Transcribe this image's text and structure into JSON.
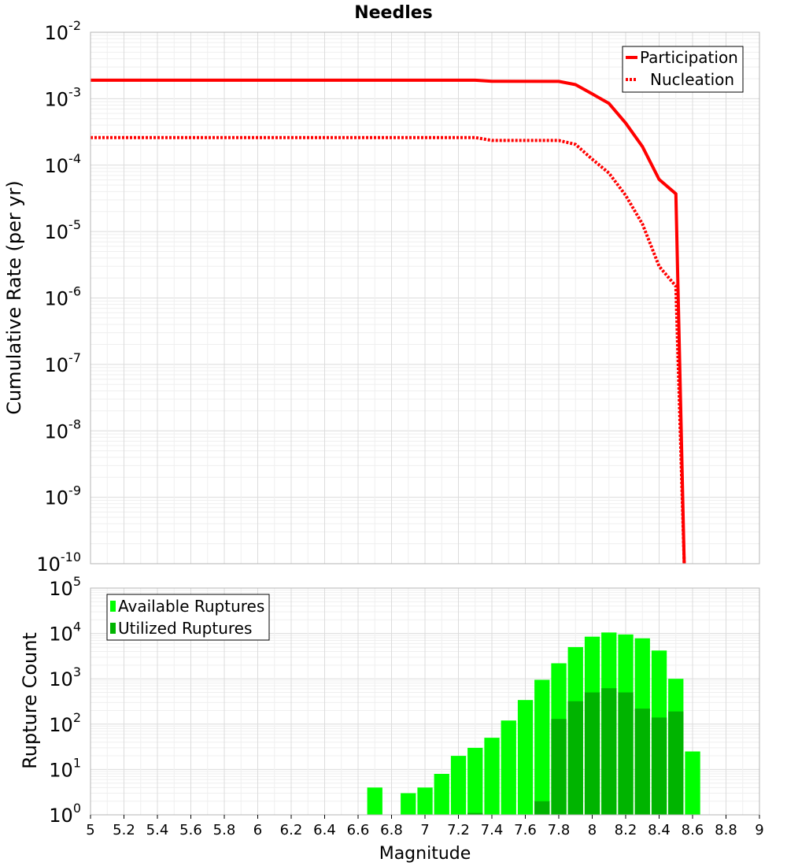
{
  "chart_data": [
    {
      "type": "line",
      "title": "Needles",
      "xlabel": "",
      "ylabel": "Cumulative Rate (per yr)",
      "xlim": [
        5,
        9
      ],
      "ylim": [
        1e-10,
        0.01
      ],
      "yscale": "log",
      "grid": true,
      "legend_position": "top-right",
      "series": [
        {
          "name": "Participation",
          "style": "solid",
          "color": "#ff0000",
          "x": [
            5.0,
            7.3,
            7.4,
            7.8,
            7.9,
            8.0,
            8.1,
            8.2,
            8.3,
            8.4,
            8.5,
            8.55
          ],
          "y": [
            0.0019,
            0.0019,
            0.00183,
            0.00182,
            0.00163,
            0.00118,
            0.00085,
            0.00043,
            0.00019,
            6.1e-05,
            3.7e-05,
            1e-10
          ]
        },
        {
          "name": "Nucleation",
          "style": "dotted",
          "color": "#ff0000",
          "x": [
            5.0,
            7.3,
            7.4,
            7.8,
            7.9,
            8.0,
            8.1,
            8.2,
            8.3,
            8.4,
            8.5,
            8.55
          ],
          "y": [
            0.00026,
            0.00026,
            0.000235,
            0.000235,
            0.000205,
            0.000123,
            7.6e-05,
            3.5e-05,
            1.3e-05,
            3e-06,
            1.5e-06,
            1e-10
          ]
        }
      ]
    },
    {
      "type": "bar",
      "xlabel": "Magnitude",
      "ylabel": "Rupture Count",
      "xlim": [
        5,
        9
      ],
      "ylim": [
        1,
        100000
      ],
      "yscale": "log",
      "grid": true,
      "legend_position": "top-left",
      "x_ticks": [
        "5",
        "5.2",
        "5.4",
        "5.6",
        "5.8",
        "6",
        "6.2",
        "6.4",
        "6.6",
        "6.8",
        "7",
        "7.2",
        "7.4",
        "7.6",
        "7.8",
        "8",
        "8.2",
        "8.4",
        "8.6",
        "8.8",
        "9"
      ],
      "series": [
        {
          "name": "Available Ruptures",
          "color": "#00ff00",
          "x": [
            6.7,
            6.9,
            7.0,
            7.1,
            7.2,
            7.3,
            7.4,
            7.5,
            7.6,
            7.7,
            7.8,
            7.9,
            8.0,
            8.1,
            8.2,
            8.3,
            8.4,
            8.5,
            8.6
          ],
          "values": [
            4,
            3,
            4,
            8,
            20,
            30,
            50,
            120,
            340,
            950,
            2200,
            5000,
            8500,
            10500,
            9500,
            7800,
            4200,
            1000,
            25
          ]
        },
        {
          "name": "Utilized Ruptures",
          "color": "#00b400",
          "x": [
            7.3,
            7.7,
            7.8,
            7.9,
            8.0,
            8.1,
            8.2,
            8.3,
            8.4,
            8.5
          ],
          "values": [
            1.1,
            2,
            130,
            320,
            500,
            620,
            500,
            220,
            140,
            190
          ]
        }
      ]
    }
  ]
}
